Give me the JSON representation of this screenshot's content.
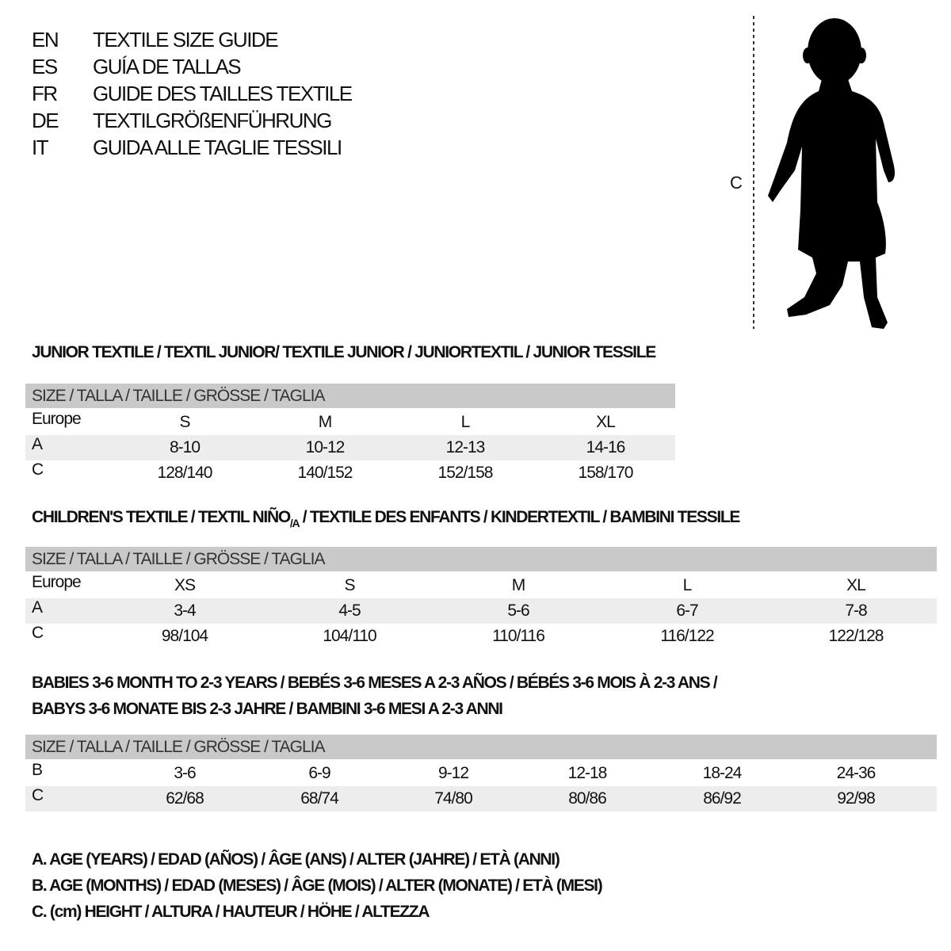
{
  "title_lines": [
    {
      "code": "EN",
      "text": "TEXTILE SIZE GUIDE"
    },
    {
      "code": "ES",
      "text": "GUÍA DE TALLAS"
    },
    {
      "code": "FR",
      "text": "GUIDE DES TAILLES TEXTILE"
    },
    {
      "code": "DE",
      "text": "TEXTILGRÖßENFÜHRUNG"
    },
    {
      "code": "IT",
      "text": "GUIDA ALLE TAGLIE TESSILI"
    }
  ],
  "figure": {
    "icon": "child-silhouette",
    "measure_label": "C"
  },
  "junior": {
    "heading": "JUNIOR TEXTILE / TEXTIL JUNIOR/ TEXTILE JUNIOR / JUNIORTEXTIL / JUNIOR TESSILE",
    "header": "SIZE / TALLA / TAILLE / GRÖSSE / TAGLIA",
    "rows": [
      {
        "label": "Europe",
        "cells": [
          "S",
          "M",
          "L",
          "XL"
        ]
      },
      {
        "label": "A",
        "cells": [
          "8-10",
          "10-12",
          "12-13",
          "14-16"
        ]
      },
      {
        "label": "C",
        "cells": [
          "128/140",
          "140/152",
          "152/158",
          "158/170"
        ]
      }
    ]
  },
  "children": {
    "heading": "CHILDREN'S TEXTILE / TEXTIL NIÑO",
    "heading_sub": "/A",
    "heading_rest": " / TEXTILE DES ENFANTS / KINDERTEXTIL / BAMBINI TESSILE",
    "header": "SIZE / TALLA / TAILLE / GRÖSSE / TAGLIA",
    "rows": [
      {
        "label": "Europe",
        "cells": [
          "XS",
          "S",
          "M",
          "L",
          "XL"
        ]
      },
      {
        "label": "A",
        "cells": [
          "3-4",
          "4-5",
          "5-6",
          "6-7",
          "7-8"
        ]
      },
      {
        "label": "C",
        "cells": [
          "98/104",
          "104/110",
          "110/116",
          "116/122",
          "122/128"
        ]
      }
    ]
  },
  "babies": {
    "heading_line1": "BABIES 3-6 MONTH TO 2-3 YEARS / BEBÉS 3-6 MESES A 2-3 AÑOS / BÉBÉS 3-6 MOIS À 2-3 ANS /",
    "heading_line2": "BABYS 3-6 MONATE BIS 2-3 JAHRE / BAMBINI 3-6 MESI A 2-3 ANNI",
    "header": "SIZE / TALLA / TAILLE / GRÖSSE / TAGLIA",
    "rows": [
      {
        "label": "B",
        "cells": [
          "3-6",
          "6-9",
          "9-12",
          "12-18",
          "18-24",
          "24-36"
        ]
      },
      {
        "label": "C",
        "cells": [
          "62/68",
          "68/74",
          "74/80",
          "80/86",
          "86/92",
          "92/98"
        ]
      }
    ]
  },
  "legend": [
    "A. AGE (YEARS) / EDAD (AÑOS) / ÂGE (ANS) / ALTER (JAHRE) / ETÀ (ANNI)",
    "B. AGE (MONTHS) / EDAD (MESES) / ÂGE (MOIS) / ALTER (MONATE) / ETÀ (MESI)",
    "C. (cm) HEIGHT / ALTURA / HAUTEUR / HÖHE / ALTEZZA"
  ],
  "colors": {
    "header_bg": "#c9c9c9",
    "stripe_bg": "#ededed",
    "text": "#111111"
  }
}
